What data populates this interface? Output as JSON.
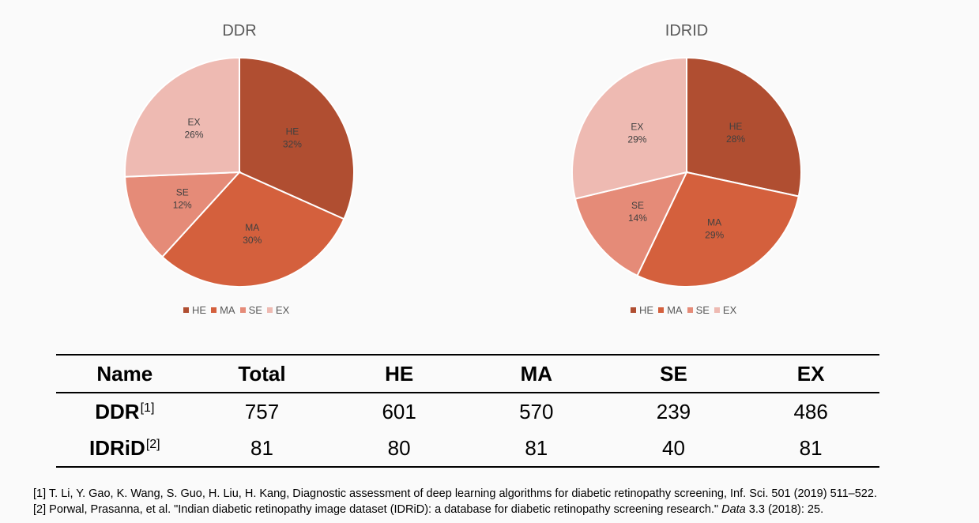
{
  "chart_data": [
    {
      "type": "pie",
      "title": "DDR",
      "labels": [
        "HE",
        "MA",
        "SE",
        "EX"
      ],
      "percent_labels": [
        "32%",
        "30%",
        "12%",
        "26%"
      ],
      "values": [
        601,
        570,
        239,
        486
      ],
      "colors": [
        "#b04e31",
        "#d4603d",
        "#e58b78",
        "#eebab2"
      ],
      "legend": "bottom"
    },
    {
      "type": "pie",
      "title": "IDRID",
      "labels": [
        "HE",
        "MA",
        "SE",
        "EX"
      ],
      "percent_labels": [
        "28%",
        "29%",
        "14%",
        "29%"
      ],
      "values": [
        80,
        81,
        40,
        81
      ],
      "colors": [
        "#b04e31",
        "#d4603d",
        "#e58b78",
        "#eebab2"
      ],
      "legend": "bottom"
    }
  ],
  "table": {
    "headers": [
      "Name",
      "Total",
      "HE",
      "MA",
      "SE",
      "EX"
    ],
    "rows": [
      {
        "name": "DDR",
        "ref": "[1]",
        "values": [
          "757",
          "601",
          "570",
          "239",
          "486"
        ]
      },
      {
        "name": "IDRiD",
        "ref": "[2]",
        "values": [
          "81",
          "80",
          "81",
          "40",
          "81"
        ]
      }
    ]
  },
  "references": {
    "ref1": "[1] T. Li, Y. Gao, K. Wang, S. Guo, H. Liu, H. Kang, Diagnostic assessment of deep learning algorithms for diabetic retinopathy screening, Inf. Sci. 501 (2019) 511–522.",
    "ref2_pre": "[2] Porwal, Prasanna, et al. \"Indian diabetic retinopathy image dataset (IDRiD): a database for diabetic retinopathy screening research.\" ",
    "ref2_journal": "Data",
    "ref2_post": " 3.3 (2018): 25."
  }
}
